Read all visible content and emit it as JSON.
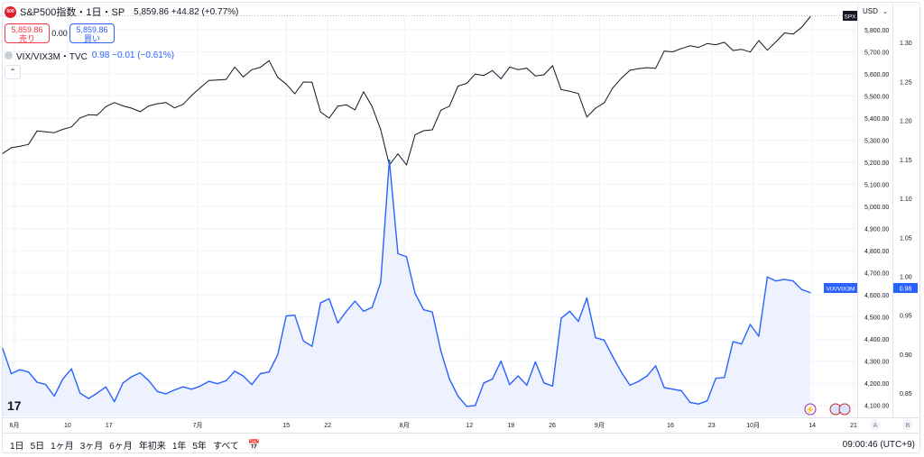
{
  "symbol": {
    "logo": "500",
    "title": "S&P500指数・1日・SP",
    "ohlc": "5,859.86 +44.82 (+0.77%)",
    "sell_price": "5,859.86",
    "sell_label": "売り",
    "spread": "0.00",
    "buy_price": "5,859.86",
    "buy_label": "買い"
  },
  "overlay": {
    "name": "VIX/VIX3M・TVC",
    "values": "0.98 −0.01 (−0.61%)",
    "collapse_icon": "chevron-up-icon"
  },
  "right_axis": {
    "currency": "USD",
    "spx_badge": "SPX",
    "vix_badge": "VIX/VIX3M",
    "vix_value": "0.98"
  },
  "bottom": {
    "timeframes": [
      "1日",
      "5日",
      "1ヶ月",
      "3ヶ月",
      "6ヶ月",
      "年初来",
      "1年",
      "5年",
      "すべて"
    ],
    "time": "09:00:46 (UTC+9)",
    "auto_btn": "A",
    "b_btn": "B",
    "logo": "17"
  },
  "colors": {
    "spx": "#131722",
    "vix": "#2962ff",
    "vix_fill": "#eef2ff",
    "grid": "#f0f3fa"
  },
  "chart_data": {
    "type": "line",
    "x_ticks": [
      "6月",
      "10",
      "17",
      "7月",
      "15",
      "22",
      "8月",
      "12",
      "19",
      "26",
      "9月",
      "16",
      "23",
      "10月",
      "14",
      "21"
    ],
    "y_left_label": "",
    "y_right_label": "",
    "spx_axis_ticks": [
      "5,800.00",
      "5,700.00",
      "5,600.00",
      "5,500.00",
      "5,400.00",
      "5,300.00",
      "5,200.00",
      "5,100.00",
      "5,000.00",
      "4,900.00",
      "4,800.00",
      "4,700.00",
      "4,600.00",
      "4,500.00",
      "4,400.00",
      "4,300.00",
      "4,200.00",
      "4,100.00"
    ],
    "spx_ylim": [
      4050,
      5865
    ],
    "vix_axis_ticks": [
      "1.30",
      "1.25",
      "1.20",
      "1.15",
      "1.10",
      "1.05",
      "1.00",
      "0.95",
      "0.90",
      "0.85"
    ],
    "vix_ylim": [
      0.82,
      1.335
    ],
    "series": [
      {
        "name": "S&P500指数",
        "values": [
          5240,
          5266,
          5272,
          5281,
          5342,
          5338,
          5334,
          5349,
          5360,
          5401,
          5415,
          5413,
          5452,
          5470,
          5455,
          5445,
          5429,
          5455,
          5465,
          5470,
          5446,
          5462,
          5503,
          5538,
          5570,
          5572,
          5575,
          5631,
          5586,
          5619,
          5630,
          5660,
          5585,
          5554,
          5510,
          5563,
          5562,
          5427,
          5400,
          5454,
          5460,
          5437,
          5519,
          5452,
          5348,
          5188,
          5238,
          5188,
          5324,
          5343,
          5347,
          5436,
          5454,
          5545,
          5557,
          5599,
          5593,
          5615,
          5578,
          5631,
          5619,
          5626,
          5591,
          5596,
          5637,
          5529,
          5521,
          5511,
          5405,
          5445,
          5469,
          5536,
          5580,
          5616,
          5624,
          5628,
          5625,
          5703,
          5700,
          5715,
          5727,
          5720,
          5737,
          5732,
          5743,
          5706,
          5711,
          5699,
          5751,
          5707,
          5745,
          5785,
          5780,
          5811,
          5859
        ]
      },
      {
        "name": "VIX/VIX3M",
        "values": [
          0.907,
          0.875,
          0.88,
          0.877,
          0.864,
          0.861,
          0.846,
          0.868,
          0.881,
          0.85,
          0.843,
          0.85,
          0.858,
          0.839,
          0.863,
          0.871,
          0.876,
          0.866,
          0.852,
          0.849,
          0.854,
          0.858,
          0.855,
          0.859,
          0.865,
          0.862,
          0.866,
          0.878,
          0.872,
          0.861,
          0.875,
          0.877,
          0.899,
          0.949,
          0.95,
          0.917,
          0.91,
          0.966,
          0.971,
          0.94,
          0.955,
          0.968,
          0.955,
          0.96,
          0.992,
          1.149,
          1.029,
          1.025,
          0.978,
          0.957,
          0.954,
          0.904,
          0.868,
          0.846,
          0.833,
          0.834,
          0.863,
          0.868,
          0.891,
          0.861,
          0.872,
          0.86,
          0.89,
          0.863,
          0.859,
          0.946,
          0.955,
          0.942,
          0.972,
          0.921,
          0.918,
          0.897,
          0.877,
          0.86,
          0.865,
          0.872,
          0.885,
          0.857,
          0.855,
          0.853,
          0.838,
          0.836,
          0.84,
          0.869,
          0.87,
          0.916,
          0.913,
          0.938,
          0.923,
          0.999,
          0.994,
          0.996,
          0.994,
          0.983,
          0.979
        ]
      }
    ],
    "grid": true,
    "legend": "top-left"
  }
}
